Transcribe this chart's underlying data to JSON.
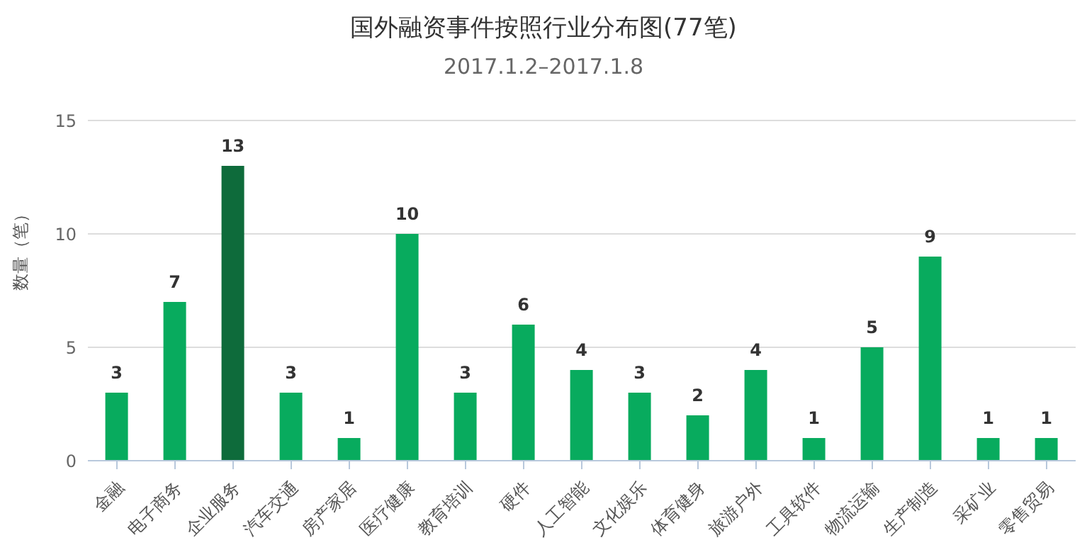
{
  "chart_data": {
    "type": "bar",
    "title": "国外融资事件按照行业分布图(77笔)",
    "subtitle": "2017.1.2–2017.1.8",
    "ylabel": "数量（笔）",
    "categories": [
      "金融",
      "电子商务",
      "企业服务",
      "汽车交通",
      "房产家居",
      "医疗健康",
      "教育培训",
      "硬件",
      "人工智能",
      "文化娱乐",
      "体育健身",
      "旅游户外",
      "工具软件",
      "物流运输",
      "生产制造",
      "采矿业",
      "零售贸易"
    ],
    "values": [
      3,
      7,
      13,
      3,
      1,
      10,
      3,
      6,
      4,
      3,
      2,
      4,
      1,
      5,
      9,
      1,
      1
    ],
    "colors": [
      "#08ab5e",
      "#08ab5e",
      "#0e6b3b",
      "#08ab5e",
      "#08ab5e",
      "#08ab5e",
      "#08ab5e",
      "#08ab5e",
      "#08ab5e",
      "#08ab5e",
      "#08ab5e",
      "#08ab5e",
      "#08ab5e",
      "#08ab5e",
      "#08ab5e",
      "#08ab5e",
      "#08ab5e"
    ],
    "ylim": [
      0,
      15
    ],
    "yticks": [
      0,
      5,
      10,
      15
    ],
    "grid": "y",
    "data_labels": true,
    "legend": false
  }
}
